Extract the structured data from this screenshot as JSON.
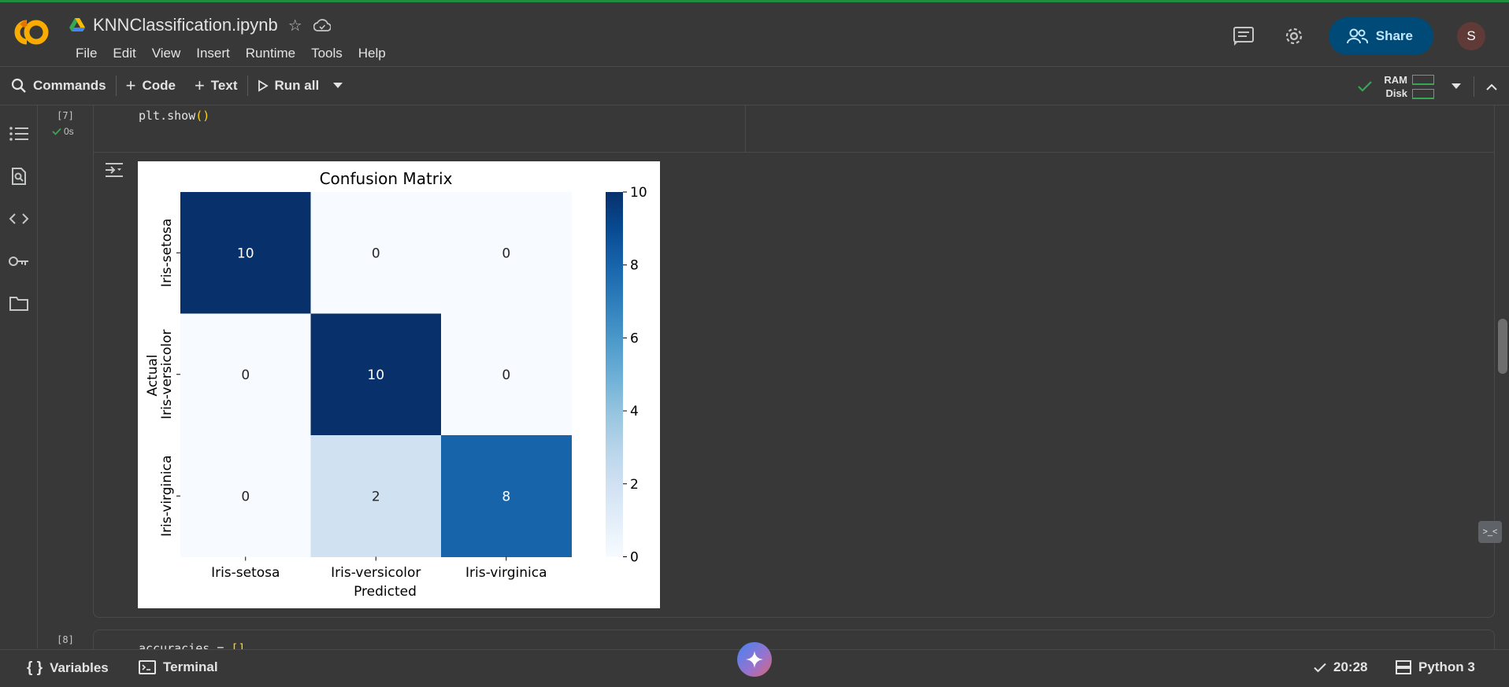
{
  "app": {
    "notebook_title": "KNNClassification.ipynb"
  },
  "menu": [
    "File",
    "Edit",
    "View",
    "Insert",
    "Runtime",
    "Tools",
    "Help"
  ],
  "header": {
    "share_label": "Share",
    "avatar_initial": "S"
  },
  "toolbar": {
    "commands_label": "Commands",
    "code_label": "Code",
    "text_label": "Text",
    "run_all_label": "Run all",
    "ram_label": "RAM",
    "disk_label": "Disk"
  },
  "cell7": {
    "exec_count": "[7]",
    "exec_time": "0s",
    "code": "plt.show"
  },
  "cell8": {
    "exec_count": "[8]",
    "code": "accuracies = "
  },
  "chart_data": {
    "type": "heatmap",
    "title": "Confusion Matrix",
    "xlabel": "Predicted",
    "ylabel": "Actual",
    "x_categories": [
      "Iris-setosa",
      "Iris-versicolor",
      "Iris-virginica"
    ],
    "y_categories": [
      "Iris-setosa",
      "Iris-versicolor",
      "Iris-virginica"
    ],
    "values": [
      [
        10,
        0,
        0
      ],
      [
        0,
        10,
        0
      ],
      [
        0,
        2,
        8
      ]
    ],
    "colormap": "Blues",
    "colorbar_range": [
      0,
      10
    ],
    "colorbar_ticks": [
      "0",
      "2",
      "4",
      "6",
      "8",
      "10"
    ]
  },
  "statusbar": {
    "variables_label": "Variables",
    "terminal_label": "Terminal",
    "time": "20:28",
    "runtime": "Python 3"
  },
  "colors": {
    "accent": "#004a77",
    "success": "#34a853",
    "background": "#383838"
  }
}
